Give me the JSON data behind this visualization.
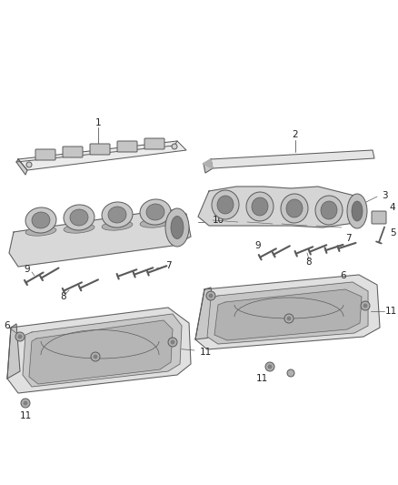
{
  "bg_color": "#ffffff",
  "line_color": "#5a5a5a",
  "fig_width": 4.38,
  "fig_height": 5.33,
  "dpi": 100,
  "label_fs": 7.5,
  "label_color": "#222222"
}
